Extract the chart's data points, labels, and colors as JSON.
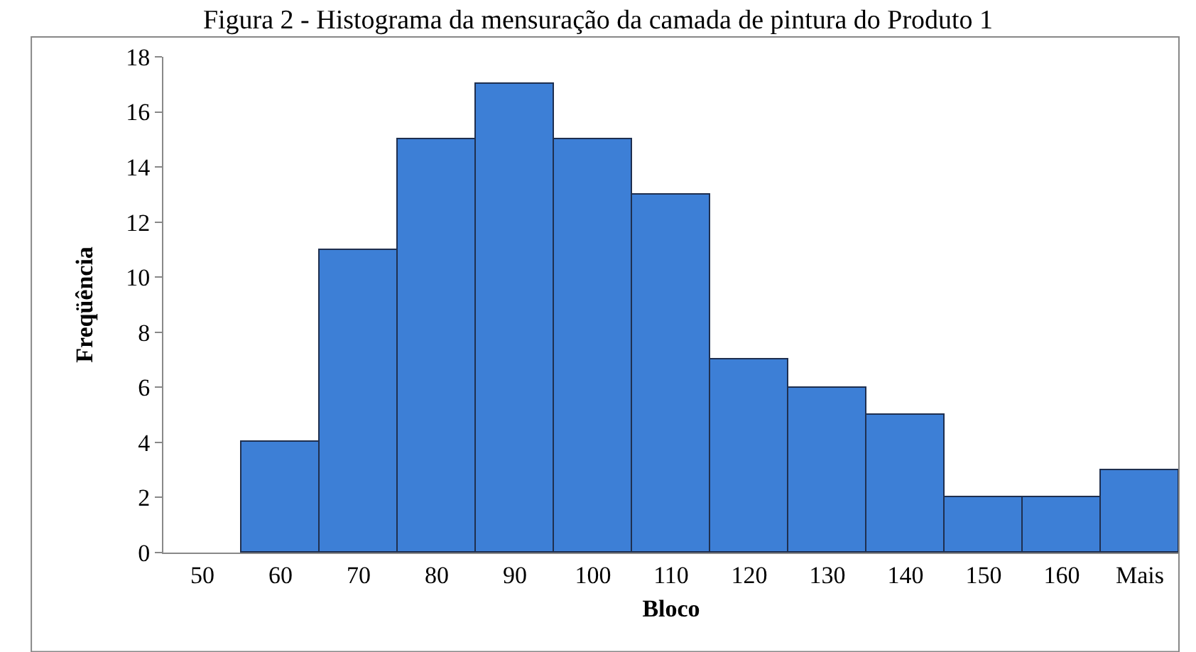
{
  "chart_data": {
    "type": "bar",
    "title": "Figura 2 - Histograma da mensuração da camada de pintura do Produto 1",
    "xlabel": "Bloco",
    "ylabel": "Freqüência",
    "categories": [
      "50",
      "60",
      "70",
      "80",
      "90",
      "100",
      "110",
      "120",
      "130",
      "140",
      "150",
      "160",
      "Mais"
    ],
    "values": [
      0,
      4,
      11,
      15,
      17,
      15,
      13,
      7,
      6,
      5,
      2,
      2,
      3
    ],
    "color": "#3d7fd6",
    "ylim": [
      0,
      18
    ],
    "yticks": [
      0,
      2,
      4,
      6,
      8,
      10,
      12,
      14,
      16,
      18
    ],
    "grid": false,
    "legend": false
  }
}
